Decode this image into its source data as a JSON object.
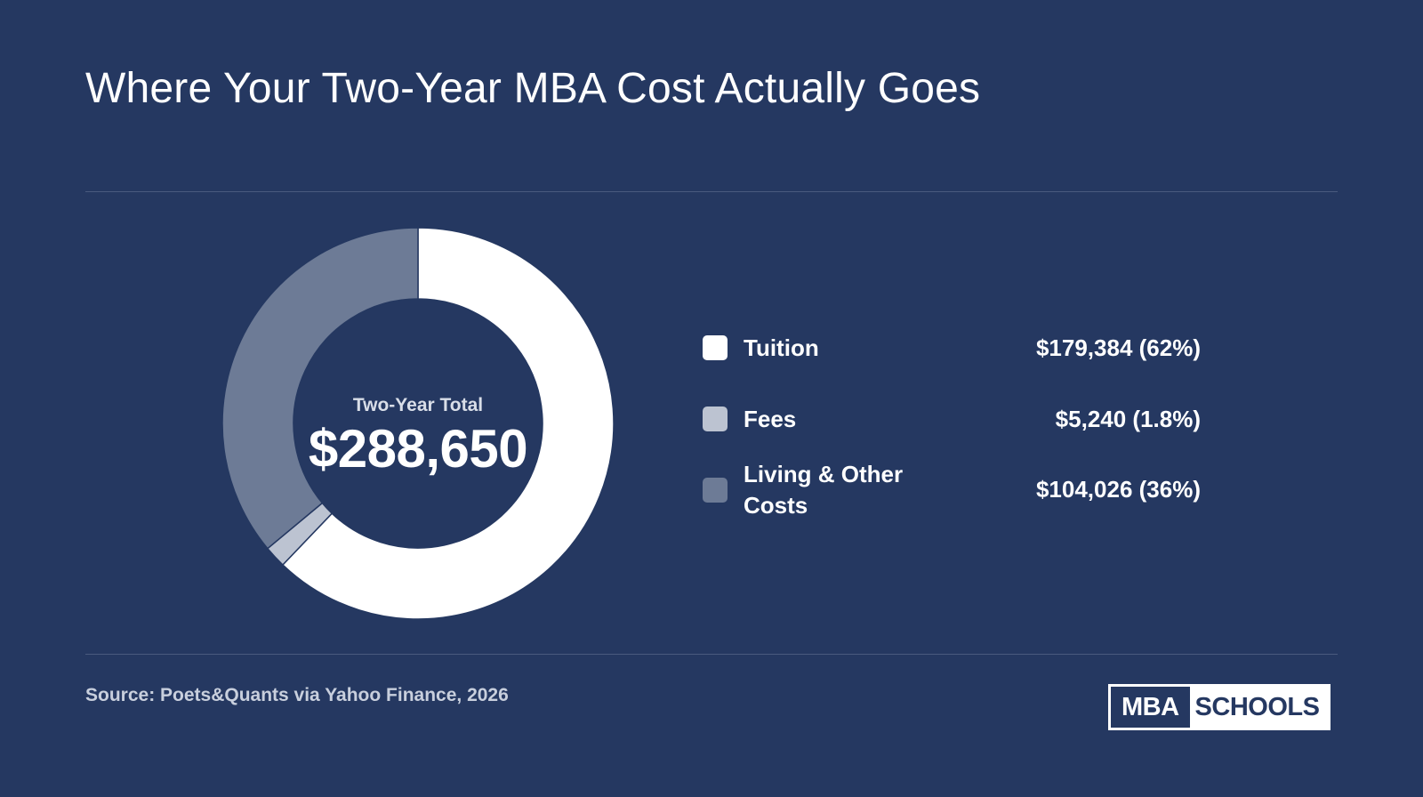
{
  "title": "Where Your Two-Year MBA Cost Actually Goes",
  "center": {
    "label": "Two-Year Total",
    "value": "$288,650"
  },
  "source": "Source: Poets&Quants via Yahoo Finance, 2026",
  "logo": {
    "part1": "MBA",
    "part2": "SCHOOLS"
  },
  "colors": {
    "background": "#253861",
    "tuition": "#ffffff",
    "fees": "#bcc3d1",
    "living": "#6d7b96"
  },
  "chart_data": {
    "type": "pie",
    "variant": "donut",
    "categories": [
      "Tuition",
      "Fees",
      "Living & Other Costs"
    ],
    "values": [
      179384,
      5240,
      104026
    ],
    "value_labels": [
      "$179,384 (62%)",
      "$5,240 (1.8%)",
      "$104,026 (36%)"
    ],
    "colors": [
      "#ffffff",
      "#bcc3d1",
      "#6d7b96"
    ],
    "total": 288650,
    "legend_position": "right"
  }
}
